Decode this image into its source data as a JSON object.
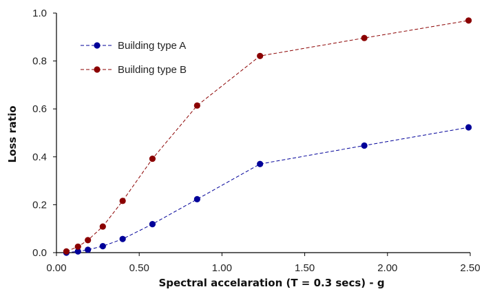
{
  "chart_data": {
    "type": "line",
    "title": "",
    "xlabel": "Spectral accelaration (T = 0.3 secs) - g",
    "ylabel": "Loss ratio",
    "xlim": [
      0,
      2.5
    ],
    "ylim": [
      0,
      1.0
    ],
    "x_ticks": [
      "0.00",
      "0.50",
      "1.00",
      "1.50",
      "2.00",
      "2.50"
    ],
    "y_ticks": [
      "0.0",
      "0.2",
      "0.4",
      "0.6",
      "0.8",
      "1.0"
    ],
    "grid": false,
    "legend_position": "top-left",
    "series": [
      {
        "name": "Building type A",
        "color": "#000099",
        "line_style": "dashed",
        "x": [
          0.06,
          0.13,
          0.19,
          0.28,
          0.4,
          0.58,
          0.85,
          1.23,
          1.86,
          2.49
        ],
        "y": [
          0.0,
          0.005,
          0.012,
          0.027,
          0.057,
          0.119,
          0.223,
          0.37,
          0.447,
          0.523
        ]
      },
      {
        "name": "Building type B",
        "color": "#8b0000",
        "line_style": "dashed",
        "x": [
          0.06,
          0.13,
          0.19,
          0.28,
          0.4,
          0.58,
          0.85,
          1.23,
          1.86,
          2.49
        ],
        "y": [
          0.005,
          0.025,
          0.052,
          0.109,
          0.216,
          0.392,
          0.614,
          0.821,
          0.896,
          0.969
        ]
      }
    ]
  }
}
